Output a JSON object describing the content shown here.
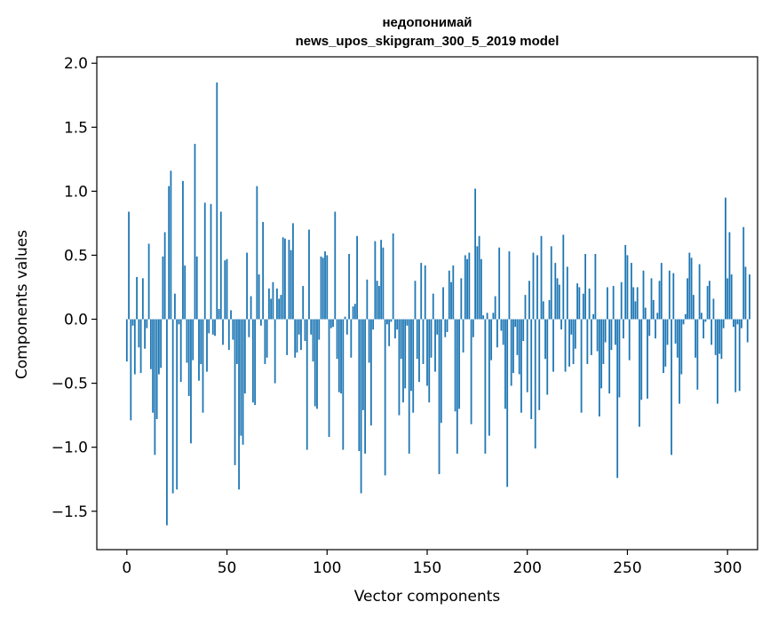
{
  "chart_data": {
    "type": "bar",
    "title": "недопонимай",
    "subtitle": "news_upos_skipgram_300_5_2019 model",
    "xlabel": "Vector components",
    "ylabel": "Components values",
    "xlim": [
      -15,
      315
    ],
    "ylim": [
      -1.8,
      2.05
    ],
    "xticks": [
      0,
      50,
      100,
      150,
      200,
      250,
      300
    ],
    "yticks": [
      -1.5,
      -1.0,
      -0.5,
      0.0,
      0.5,
      1.0,
      1.5,
      2.0
    ],
    "ytick_labels": [
      "−1.5",
      "−1.0",
      "−0.5",
      "0.0",
      "0.5",
      "1.0",
      "1.5",
      "2.0"
    ],
    "bar_color": "#1f77b4",
    "grid": false,
    "values": [
      -0.33,
      0.84,
      -0.79,
      -0.05,
      -0.43,
      0.33,
      -0.22,
      -0.42,
      0.32,
      -0.23,
      -0.07,
      0.59,
      -0.39,
      -0.73,
      -1.06,
      -0.78,
      -0.43,
      -0.38,
      0.49,
      0.68,
      -1.61,
      1.04,
      1.16,
      -1.36,
      0.2,
      -1.33,
      -0.04,
      -0.49,
      1.08,
      0.42,
      -0.34,
      -0.6,
      -0.97,
      -0.32,
      1.37,
      0.49,
      -0.48,
      -0.35,
      -0.73,
      0.91,
      -0.41,
      -0.11,
      0.9,
      -0.12,
      -0.13,
      1.85,
      0.08,
      0.84,
      -0.2,
      0.46,
      0.47,
      -0.24,
      0.07,
      -0.16,
      -1.14,
      -0.35,
      -1.33,
      -0.91,
      -0.98,
      -0.58,
      0.52,
      -0.14,
      0.18,
      -0.65,
      -0.67,
      1.04,
      0.35,
      -0.05,
      0.76,
      -0.35,
      -0.3,
      0.24,
      0.16,
      0.29,
      -0.5,
      0.24,
      0.16,
      0.19,
      0.64,
      0.63,
      -0.28,
      0.62,
      0.54,
      0.75,
      -0.3,
      -0.26,
      -0.12,
      -0.24,
      0.26,
      -0.17,
      -1.02,
      0.7,
      -0.12,
      -0.33,
      -0.68,
      -0.7,
      -0.16,
      0.49,
      0.48,
      0.53,
      0.5,
      -0.92,
      -0.07,
      -0.06,
      0.84,
      -0.31,
      -0.57,
      -0.58,
      -1.02,
      0.02,
      -0.12,
      0.51,
      -0.3,
      0.1,
      0.12,
      0.65,
      -1.03,
      -1.36,
      -0.71,
      -1.05,
      0.31,
      -0.34,
      -0.83,
      -0.08,
      0.61,
      0.3,
      0.26,
      0.62,
      0.56,
      -1.22,
      -0.04,
      -0.21,
      -0.02,
      0.67,
      -0.15,
      -0.08,
      -0.75,
      -0.31,
      -0.65,
      -0.54,
      -0.05,
      -1.05,
      -0.56,
      -0.73,
      0.3,
      -0.31,
      -0.49,
      0.44,
      -0.35,
      0.42,
      -0.52,
      -0.65,
      -0.3,
      0.2,
      -0.41,
      -0.12,
      -1.21,
      -0.81,
      0.25,
      -0.14,
      -0.1,
      0.38,
      0.29,
      0.42,
      -0.72,
      -1.05,
      -0.7,
      0.32,
      -0.26,
      0.5,
      0.47,
      0.52,
      -0.82,
      -0.14,
      1.02,
      0.57,
      0.65,
      0.47,
      0.03,
      -1.05,
      0.05,
      -0.91,
      -0.32,
      0.05,
      0.18,
      -0.22,
      0.56,
      -0.09,
      -0.2,
      -0.7,
      -1.31,
      0.53,
      -0.52,
      -0.42,
      -0.06,
      -0.28,
      -0.43,
      -0.73,
      -0.17,
      0.19,
      -0.57,
      0.3,
      -0.78,
      0.52,
      -1.01,
      0.5,
      -0.71,
      0.65,
      0.14,
      -0.31,
      -0.59,
      0.15,
      0.57,
      -0.41,
      0.44,
      0.32,
      0.27,
      -0.08,
      0.66,
      -0.41,
      0.41,
      -0.37,
      -0.12,
      -0.35,
      -0.23,
      0.28,
      0.25,
      -0.73,
      0.2,
      0.51,
      -0.35,
      0.24,
      -0.28,
      0.04,
      0.51,
      -0.25,
      -0.76,
      -0.54,
      -0.35,
      -0.18,
      0.25,
      -0.58,
      -0.24,
      0.26,
      -0.2,
      -1.24,
      -0.61,
      0.29,
      -0.15,
      0.58,
      0.5,
      -0.32,
      0.44,
      0.25,
      0.14,
      0.25,
      -0.84,
      -0.63,
      0.38,
      0.09,
      -0.62,
      -0.13,
      0.32,
      0.15,
      -0.15,
      0.05,
      0.3,
      0.44,
      -0.42,
      -0.37,
      -0.2,
      0.38,
      -1.06,
      0.36,
      -0.19,
      -0.3,
      -0.66,
      -0.43,
      -0.04,
      0.04,
      0.32,
      0.52,
      0.48,
      0.19,
      -0.3,
      -0.55,
      0.43,
      0.05,
      -0.15,
      -0.02,
      0.26,
      0.3,
      -0.2,
      0.16,
      -0.28,
      -0.66,
      -0.27,
      -0.31,
      -0.07,
      0.95,
      0.32,
      0.68,
      0.35,
      -0.06,
      -0.57,
      -0.04,
      -0.56,
      -0.07,
      0.72,
      0.41,
      -0.18,
      0.35
    ]
  }
}
